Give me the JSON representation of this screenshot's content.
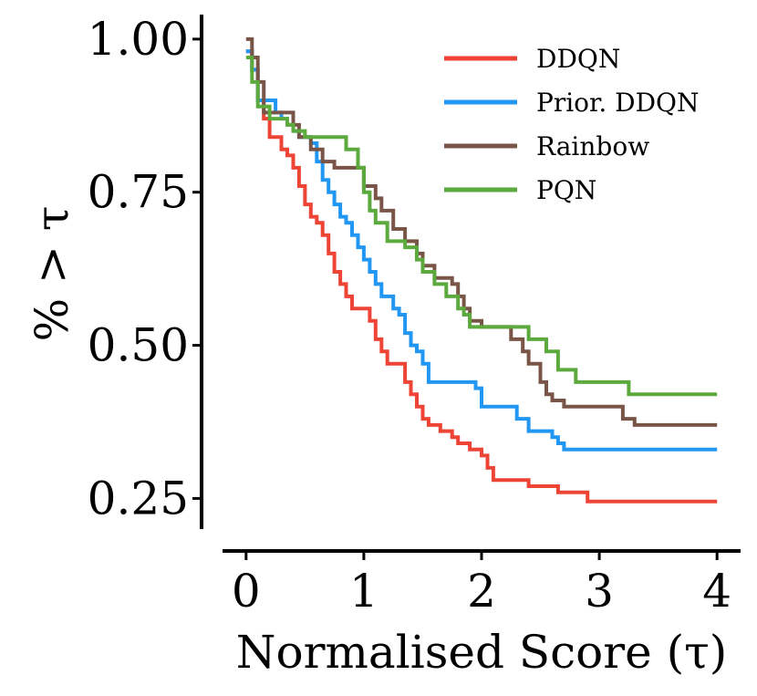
{
  "chart_data": {
    "type": "line",
    "title": "",
    "xlabel": "Normalised Score (τ)",
    "ylabel": "% > τ",
    "xlim": [
      -0.2,
      4.2
    ],
    "ylim": [
      0.2,
      1.04
    ],
    "xticks": [
      0,
      1,
      2,
      3,
      4
    ],
    "xtick_labels": [
      "0",
      "1",
      "2",
      "3",
      "4"
    ],
    "yticks": [
      0.25,
      0.5,
      0.75,
      1.0
    ],
    "ytick_labels": [
      "0.25",
      "0.50",
      "0.75",
      "1.00"
    ],
    "grid": false,
    "legend_position": "top-right",
    "series": [
      {
        "name": "DDQN",
        "color": "#ee4436",
        "x": [
          0,
          0.05,
          0.1,
          0.15,
          0.2,
          0.3,
          0.35,
          0.4,
          0.45,
          0.5,
          0.55,
          0.6,
          0.65,
          0.7,
          0.75,
          0.8,
          0.85,
          0.9,
          1.0,
          1.05,
          1.1,
          1.15,
          1.2,
          1.25,
          1.35,
          1.4,
          1.45,
          1.5,
          1.55,
          1.65,
          1.75,
          1.8,
          1.9,
          1.95,
          2.0,
          2.05,
          2.1,
          2.35,
          2.4,
          2.5,
          2.65,
          2.85,
          2.9,
          4.0
        ],
        "y": [
          0.98,
          0.95,
          0.9,
          0.87,
          0.84,
          0.82,
          0.81,
          0.79,
          0.76,
          0.73,
          0.71,
          0.7,
          0.68,
          0.65,
          0.62,
          0.6,
          0.58,
          0.56,
          0.56,
          0.54,
          0.51,
          0.49,
          0.47,
          0.47,
          0.44,
          0.42,
          0.4,
          0.38,
          0.37,
          0.36,
          0.35,
          0.34,
          0.33,
          0.33,
          0.32,
          0.3,
          0.28,
          0.28,
          0.27,
          0.27,
          0.26,
          0.26,
          0.245,
          0.245
        ]
      },
      {
        "name": "Prior. DDQN",
        "color": "#2196f3",
        "x": [
          0,
          0.05,
          0.1,
          0.2,
          0.25,
          0.3,
          0.35,
          0.4,
          0.45,
          0.55,
          0.6,
          0.65,
          0.7,
          0.75,
          0.8,
          0.85,
          0.9,
          0.95,
          1.0,
          1.05,
          1.1,
          1.15,
          1.25,
          1.3,
          1.35,
          1.4,
          1.45,
          1.5,
          1.55,
          1.75,
          1.95,
          2.0,
          2.25,
          2.3,
          2.4,
          2.6,
          2.65,
          2.7,
          4.0
        ],
        "y": [
          0.98,
          0.95,
          0.9,
          0.9,
          0.88,
          0.87,
          0.86,
          0.85,
          0.84,
          0.83,
          0.8,
          0.77,
          0.75,
          0.73,
          0.71,
          0.7,
          0.68,
          0.66,
          0.64,
          0.62,
          0.6,
          0.58,
          0.56,
          0.55,
          0.52,
          0.5,
          0.49,
          0.47,
          0.44,
          0.44,
          0.43,
          0.4,
          0.4,
          0.38,
          0.36,
          0.35,
          0.34,
          0.33,
          0.33
        ]
      },
      {
        "name": "Rainbow",
        "color": "#795548",
        "x": [
          0,
          0.05,
          0.1,
          0.15,
          0.35,
          0.4,
          0.45,
          0.55,
          0.65,
          0.75,
          0.8,
          0.95,
          1.0,
          1.1,
          1.15,
          1.25,
          1.35,
          1.45,
          1.5,
          1.6,
          1.75,
          1.8,
          1.85,
          1.9,
          2.0,
          2.25,
          2.35,
          2.4,
          2.5,
          2.55,
          2.6,
          2.7,
          2.95,
          3.2,
          3.3,
          4.0
        ],
        "y": [
          1.0,
          0.97,
          0.93,
          0.88,
          0.88,
          0.86,
          0.84,
          0.82,
          0.8,
          0.79,
          0.79,
          0.79,
          0.76,
          0.74,
          0.72,
          0.69,
          0.67,
          0.65,
          0.63,
          0.61,
          0.6,
          0.58,
          0.56,
          0.54,
          0.53,
          0.51,
          0.49,
          0.47,
          0.44,
          0.42,
          0.41,
          0.4,
          0.4,
          0.38,
          0.37,
          0.37
        ]
      },
      {
        "name": "PQN",
        "color": "#5caa3d",
        "x": [
          0,
          0.05,
          0.1,
          0.2,
          0.35,
          0.4,
          0.5,
          0.8,
          0.85,
          0.95,
          1.0,
          1.05,
          1.1,
          1.2,
          1.35,
          1.45,
          1.5,
          1.6,
          1.7,
          1.8,
          1.85,
          1.9,
          2.3,
          2.4,
          2.55,
          2.65,
          2.8,
          3.2,
          3.25,
          4.0
        ],
        "y": [
          0.97,
          0.93,
          0.89,
          0.87,
          0.86,
          0.85,
          0.84,
          0.84,
          0.82,
          0.79,
          0.75,
          0.72,
          0.7,
          0.67,
          0.66,
          0.64,
          0.62,
          0.6,
          0.58,
          0.56,
          0.55,
          0.53,
          0.53,
          0.51,
          0.49,
          0.46,
          0.44,
          0.44,
          0.42,
          0.42
        ]
      }
    ]
  }
}
